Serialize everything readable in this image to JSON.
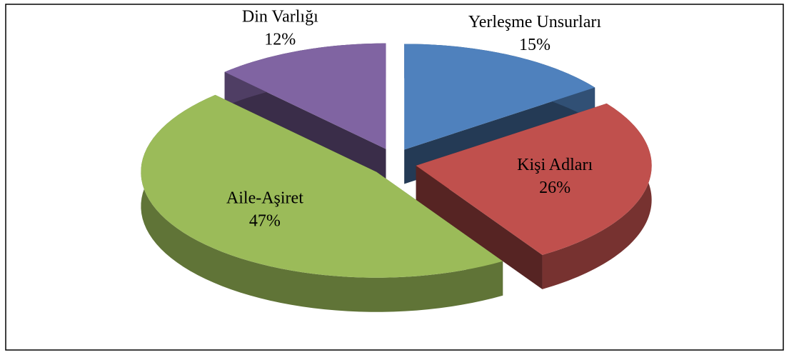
{
  "chart_data": {
    "type": "pie3d",
    "categories": [
      "Yerleşme Unsurları",
      "Kişi Adları",
      "Aile-Aşiret",
      "Din Varlığı"
    ],
    "values": [
      15,
      26,
      47,
      12
    ],
    "value_labels": [
      "15%",
      "26%",
      "47%",
      "12%"
    ],
    "colors": [
      "#4f81bd",
      "#c0504d",
      "#9bbb59",
      "#8064a2"
    ]
  }
}
